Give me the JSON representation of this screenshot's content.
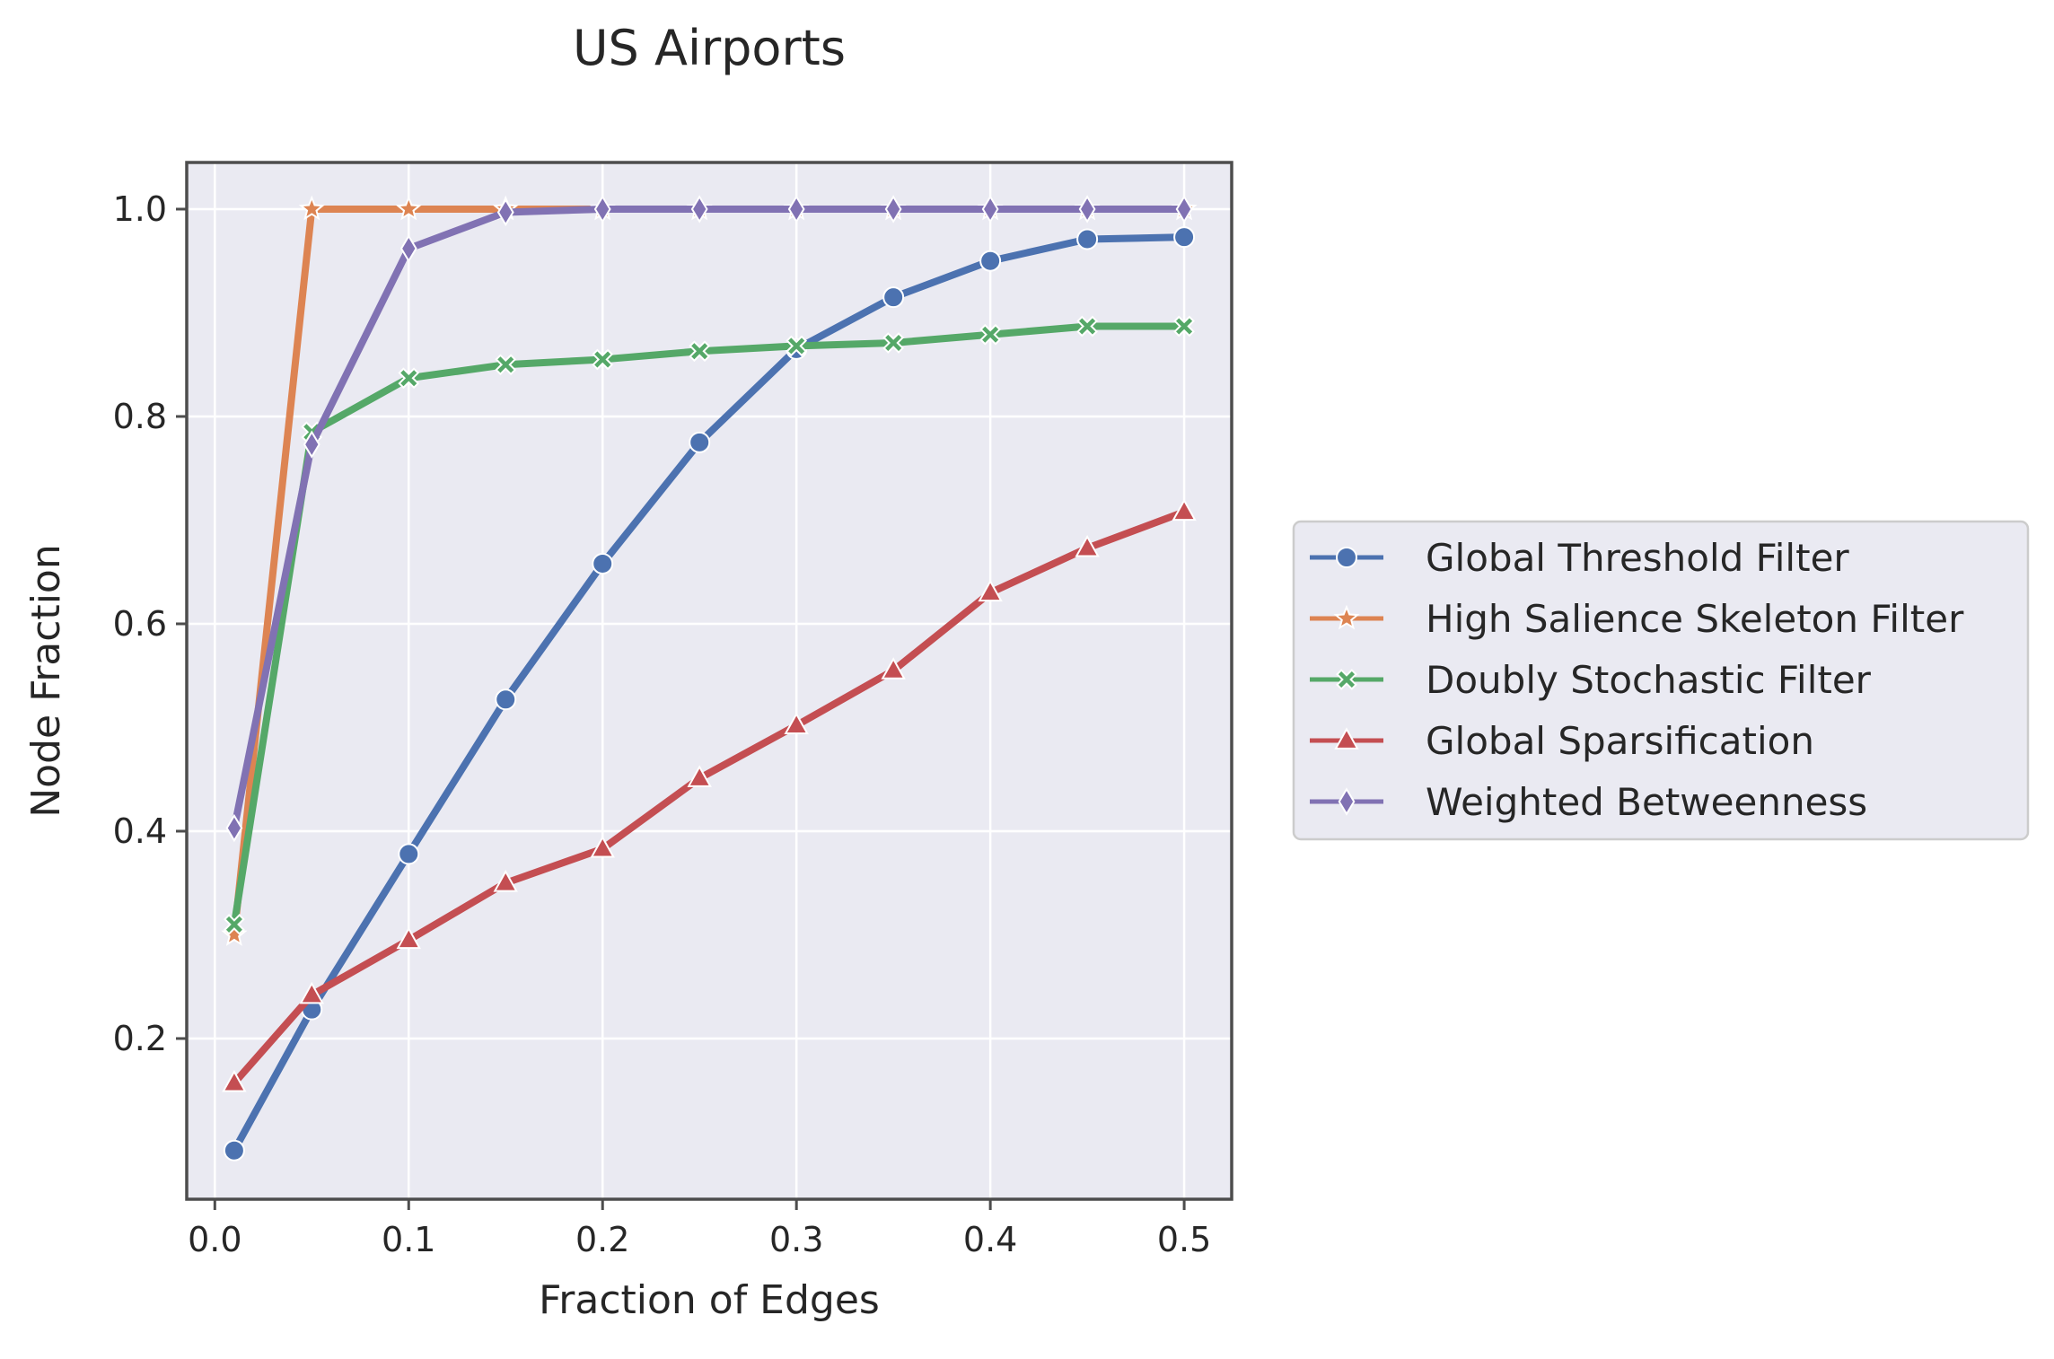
{
  "chart_data": {
    "type": "line",
    "title": "US Airports",
    "xlabel": "Fraction of Edges",
    "ylabel": "Node Fraction",
    "xlim": [
      -0.0145,
      0.5245
    ],
    "ylim": [
      0.045,
      1.045
    ],
    "xticks": [
      0.0,
      0.1,
      0.2,
      0.3,
      0.4,
      0.5
    ],
    "xtick_labels": [
      "0.0",
      "0.1",
      "0.2",
      "0.3",
      "0.4",
      "0.5"
    ],
    "yticks": [
      0.2,
      0.4,
      0.6,
      0.8,
      1.0
    ],
    "ytick_labels": [
      "0.2",
      "0.4",
      "0.6",
      "0.8",
      "1.0"
    ],
    "grid": true,
    "legend_position": "outside-right",
    "x": [
      0.01,
      0.05,
      0.1,
      0.15,
      0.2,
      0.25,
      0.3,
      0.35,
      0.4,
      0.45,
      0.5
    ],
    "series": [
      {
        "name": "Global Threshold Filter",
        "color": "#4c72b0",
        "marker": "circle",
        "values": [
          0.092,
          0.228,
          0.378,
          0.527,
          0.658,
          0.775,
          0.865,
          0.915,
          0.95,
          0.971,
          0.973
        ]
      },
      {
        "name": "High Salience Skeleton Filter",
        "color": "#dd8452",
        "marker": "star",
        "values": [
          0.3,
          1.0,
          1.0,
          1.0,
          1.0,
          1.0,
          1.0,
          1.0,
          1.0,
          1.0,
          1.0
        ]
      },
      {
        "name": "Doubly Stochastic Filter",
        "color": "#55a868",
        "marker": "x",
        "values": [
          0.31,
          0.785,
          0.837,
          0.85,
          0.855,
          0.863,
          0.868,
          0.871,
          0.879,
          0.887,
          0.887
        ]
      },
      {
        "name": "Global Sparsification",
        "color": "#c44e52",
        "marker": "triangle",
        "values": [
          0.157,
          0.242,
          0.295,
          0.35,
          0.383,
          0.451,
          0.502,
          0.555,
          0.63,
          0.673,
          0.708
        ]
      },
      {
        "name": "Weighted Betweenness",
        "color": "#8172b3",
        "marker": "diamond",
        "values": [
          0.403,
          0.773,
          0.962,
          0.997,
          1.0,
          1.0,
          1.0,
          1.0,
          1.0,
          1.0,
          1.0
        ]
      }
    ]
  }
}
